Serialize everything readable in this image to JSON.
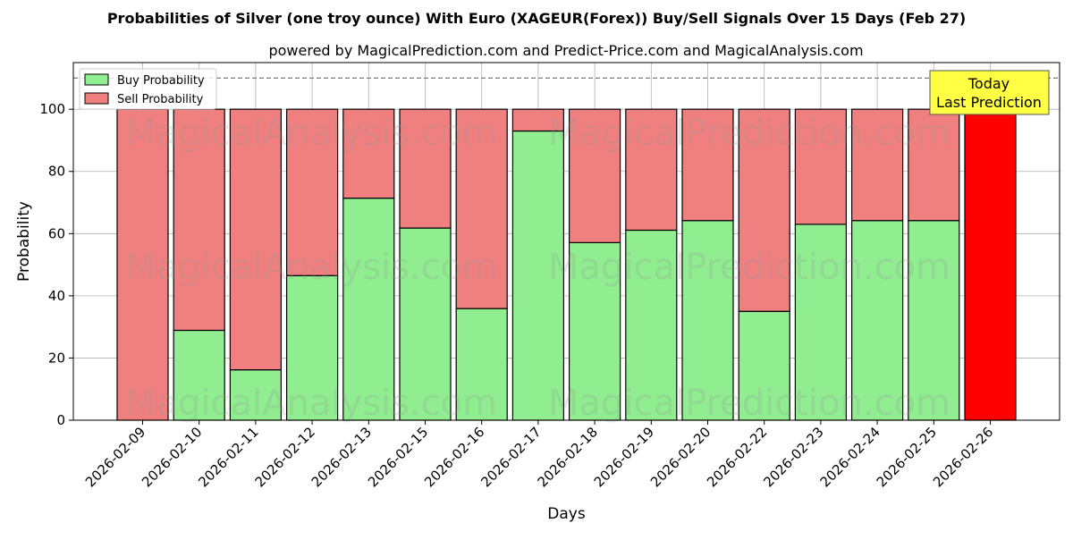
{
  "chart_data": {
    "type": "bar",
    "stacked": true,
    "title": "Probabilities of Silver (one troy ounce) With Euro (XAGEUR(Forex)) Buy/Sell Signals Over 15 Days (Feb 27)",
    "subtitle": "powered by MagicalPrediction.com and Predict-Price.com and MagicalAnalysis.com",
    "xlabel": "Days",
    "ylabel": "Probability",
    "ylim": [
      0,
      115
    ],
    "yticks": [
      0,
      20,
      40,
      60,
      80,
      100
    ],
    "grid": true,
    "legend_position": "top-left",
    "reference_line": 110,
    "categories": [
      "2026-02-09",
      "2026-02-10",
      "2026-02-11",
      "2026-02-12",
      "2026-02-13",
      "2026-02-15",
      "2026-02-16",
      "2026-02-17",
      "2026-02-18",
      "2026-02-19",
      "2026-02-20",
      "2026-02-22",
      "2026-02-23",
      "2026-02-24",
      "2026-02-25",
      "2026-02-26"
    ],
    "series": [
      {
        "name": "Buy Probability",
        "color": "#90ee90",
        "values": [
          0,
          28.9,
          16.2,
          46.5,
          71.4,
          61.8,
          35.9,
          93.0,
          57.1,
          61.1,
          64.2,
          35.0,
          63.0,
          64.2,
          64.2,
          0
        ]
      },
      {
        "name": "Sell Probability",
        "color": "#f08080",
        "values": [
          100,
          71.1,
          83.8,
          53.5,
          28.6,
          38.2,
          64.1,
          7.0,
          42.9,
          38.9,
          35.8,
          65.0,
          37.0,
          35.8,
          35.8,
          100
        ]
      }
    ],
    "highlight": {
      "index": 15,
      "color": "#ff0000"
    },
    "annotation": {
      "lines": [
        "Today",
        "Last Prediction"
      ],
      "color": "#ffff44"
    },
    "watermarks": [
      "MagicalAnalysis.com",
      "MagicalPrediction.com"
    ]
  }
}
